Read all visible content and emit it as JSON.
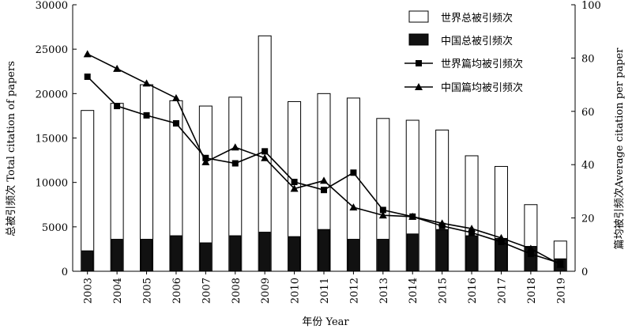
{
  "chart_data": {
    "type": "bar",
    "categories": [
      "2003",
      "2004",
      "2005",
      "2006",
      "2007",
      "2008",
      "2009",
      "2010",
      "2011",
      "2012",
      "2013",
      "2014",
      "2015",
      "2016",
      "2017",
      "2018",
      "2019"
    ],
    "xlabel": "年份 Year",
    "ylabel_left": "总被引频次 Total citation of papers",
    "ylabel_right": "篇均被引频次Average citation per paper",
    "ylim_left": [
      0,
      30000
    ],
    "ylim_right": [
      0,
      100
    ],
    "yticks_left": [
      "0",
      "5000",
      "10000",
      "15000",
      "20000",
      "25000",
      "30000"
    ],
    "yticks_right": [
      "0",
      "20",
      "40",
      "60",
      "80",
      "100"
    ],
    "grid": false,
    "legend_position": "top-right",
    "series": [
      {
        "name": "世界总被引频次",
        "type": "bar",
        "axis": "left",
        "color": "#ffffff",
        "values": [
          18100,
          18900,
          21000,
          19200,
          18600,
          19600,
          26500,
          19100,
          20000,
          19500,
          17200,
          17000,
          15900,
          13000,
          11800,
          7500,
          3400
        ]
      },
      {
        "name": "中国总被引频次",
        "type": "bar",
        "axis": "left",
        "color": "#111111",
        "values": [
          2300,
          3600,
          3600,
          4000,
          3200,
          4000,
          4400,
          3900,
          4700,
          3600,
          3600,
          4200,
          4700,
          4000,
          3700,
          2800,
          1400
        ]
      },
      {
        "name": "世界篇均被引频次",
        "type": "line",
        "axis": "right",
        "marker": "square",
        "values": [
          73,
          62,
          58.5,
          55.5,
          42.5,
          40.5,
          45,
          33.5,
          30.5,
          37,
          23,
          20.5,
          17,
          14.5,
          11,
          6.5,
          3
        ]
      },
      {
        "name": "中国篇均被引频次",
        "type": "line",
        "axis": "right",
        "marker": "triangle",
        "values": [
          81.5,
          76,
          70.5,
          65,
          41,
          46.5,
          42.5,
          31,
          34,
          24,
          21,
          20.5,
          18,
          16,
          12.5,
          8.5,
          2.5
        ]
      }
    ]
  }
}
